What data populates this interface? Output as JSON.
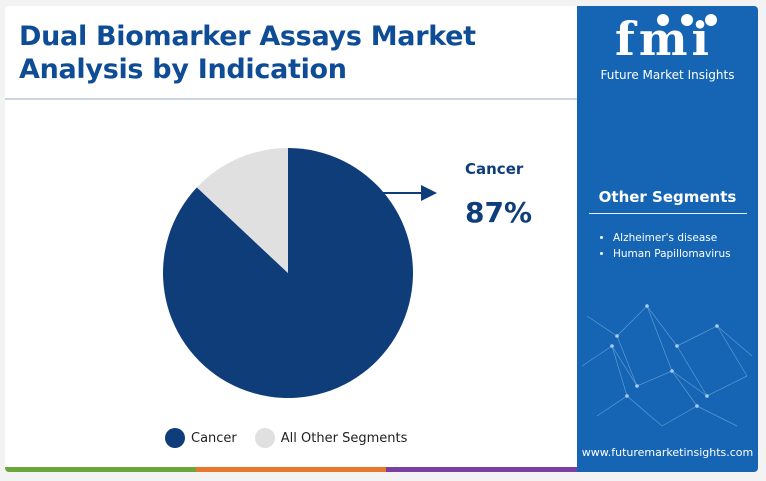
{
  "title": "Dual Biomarker Assays Market Analysis by Indication",
  "callout": {
    "label": "Cancer",
    "value": "87%"
  },
  "sidebar": {
    "logo_text": "fmi",
    "logo_subtitle": "Future Market Insights",
    "segments_title": "Other Segments",
    "segments": [
      "Alzheimer's disease",
      "Human Papillomavirus"
    ],
    "url": "www.futuremarketinsights.com"
  },
  "colors": {
    "brand_blue": "#1565b4",
    "cancer": "#0f3d7a",
    "other": "#e0e0e0",
    "bottom_bar": [
      "#6aa63a",
      "#e8762c",
      "#7b3fa0"
    ]
  },
  "chart_data": {
    "type": "pie",
    "slices": [
      {
        "label": "Cancer",
        "value": 87
      },
      {
        "label": "All Other Segments",
        "value": 13
      }
    ],
    "legend": [
      "Cancer",
      "All Other Segments"
    ],
    "legend_position": "bottom"
  }
}
